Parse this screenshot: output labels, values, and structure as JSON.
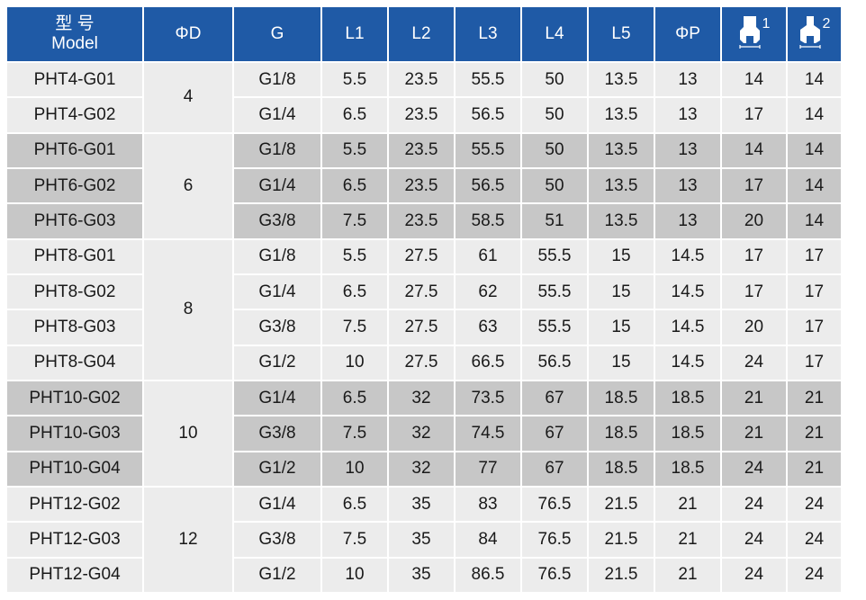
{
  "headers": {
    "model_zh": "型 号",
    "model_en": "Model",
    "diameter": "ΦD",
    "thread": "G",
    "l1": "L1",
    "l2": "L2",
    "l3": "L3",
    "l4": "L4",
    "l5": "L5",
    "phi_p": "ΦP",
    "wrench1_icon": "wrench-flat-icon",
    "wrench1_num": "1",
    "wrench2_icon": "wrench-flat-icon",
    "wrench2_num": "2"
  },
  "groups": [
    {
      "d": "4",
      "rows": [
        {
          "model": "PHT4-G01",
          "g": "G1/8",
          "l1": "5.5",
          "l2": "23.5",
          "l3": "55.5",
          "l4": "50",
          "l5": "13.5",
          "p": "13",
          "w1": "14",
          "w2": "14"
        },
        {
          "model": "PHT4-G02",
          "g": "G1/4",
          "l1": "6.5",
          "l2": "23.5",
          "l3": "56.5",
          "l4": "50",
          "l5": "13.5",
          "p": "13",
          "w1": "17",
          "w2": "14"
        }
      ]
    },
    {
      "d": "6",
      "rows": [
        {
          "model": "PHT6-G01",
          "g": "G1/8",
          "l1": "5.5",
          "l2": "23.5",
          "l3": "55.5",
          "l4": "50",
          "l5": "13.5",
          "p": "13",
          "w1": "14",
          "w2": "14"
        },
        {
          "model": "PHT6-G02",
          "g": "G1/4",
          "l1": "6.5",
          "l2": "23.5",
          "l3": "56.5",
          "l4": "50",
          "l5": "13.5",
          "p": "13",
          "w1": "17",
          "w2": "14"
        },
        {
          "model": "PHT6-G03",
          "g": "G3/8",
          "l1": "7.5",
          "l2": "23.5",
          "l3": "58.5",
          "l4": "51",
          "l5": "13.5",
          "p": "13",
          "w1": "20",
          "w2": "14"
        }
      ]
    },
    {
      "d": "8",
      "rows": [
        {
          "model": "PHT8-G01",
          "g": "G1/8",
          "l1": "5.5",
          "l2": "27.5",
          "l3": "61",
          "l4": "55.5",
          "l5": "15",
          "p": "14.5",
          "w1": "17",
          "w2": "17"
        },
        {
          "model": "PHT8-G02",
          "g": "G1/4",
          "l1": "6.5",
          "l2": "27.5",
          "l3": "62",
          "l4": "55.5",
          "l5": "15",
          "p": "14.5",
          "w1": "17",
          "w2": "17"
        },
        {
          "model": "PHT8-G03",
          "g": "G3/8",
          "l1": "7.5",
          "l2": "27.5",
          "l3": "63",
          "l4": "55.5",
          "l5": "15",
          "p": "14.5",
          "w1": "20",
          "w2": "17"
        },
        {
          "model": "PHT8-G04",
          "g": "G1/2",
          "l1": "10",
          "l2": "27.5",
          "l3": "66.5",
          "l4": "56.5",
          "l5": "15",
          "p": "14.5",
          "w1": "24",
          "w2": "17"
        }
      ]
    },
    {
      "d": "10",
      "rows": [
        {
          "model": "PHT10-G02",
          "g": "G1/4",
          "l1": "6.5",
          "l2": "32",
          "l3": "73.5",
          "l4": "67",
          "l5": "18.5",
          "p": "18.5",
          "w1": "21",
          "w2": "21"
        },
        {
          "model": "PHT10-G03",
          "g": "G3/8",
          "l1": "7.5",
          "l2": "32",
          "l3": "74.5",
          "l4": "67",
          "l5": "18.5",
          "p": "18.5",
          "w1": "21",
          "w2": "21"
        },
        {
          "model": "PHT10-G04",
          "g": "G1/2",
          "l1": "10",
          "l2": "32",
          "l3": "77",
          "l4": "67",
          "l5": "18.5",
          "p": "18.5",
          "w1": "24",
          "w2": "21"
        }
      ]
    },
    {
      "d": "12",
      "rows": [
        {
          "model": "PHT12-G02",
          "g": "G1/4",
          "l1": "6.5",
          "l2": "35",
          "l3": "83",
          "l4": "76.5",
          "l5": "21.5",
          "p": "21",
          "w1": "24",
          "w2": "24"
        },
        {
          "model": "PHT12-G03",
          "g": "G3/8",
          "l1": "7.5",
          "l2": "35",
          "l3": "84",
          "l4": "76.5",
          "l5": "21.5",
          "p": "21",
          "w1": "24",
          "w2": "24"
        },
        {
          "model": "PHT12-G04",
          "g": "G1/2",
          "l1": "10",
          "l2": "35",
          "l3": "86.5",
          "l4": "76.5",
          "l5": "21.5",
          "p": "21",
          "w1": "24",
          "w2": "24"
        }
      ]
    }
  ]
}
